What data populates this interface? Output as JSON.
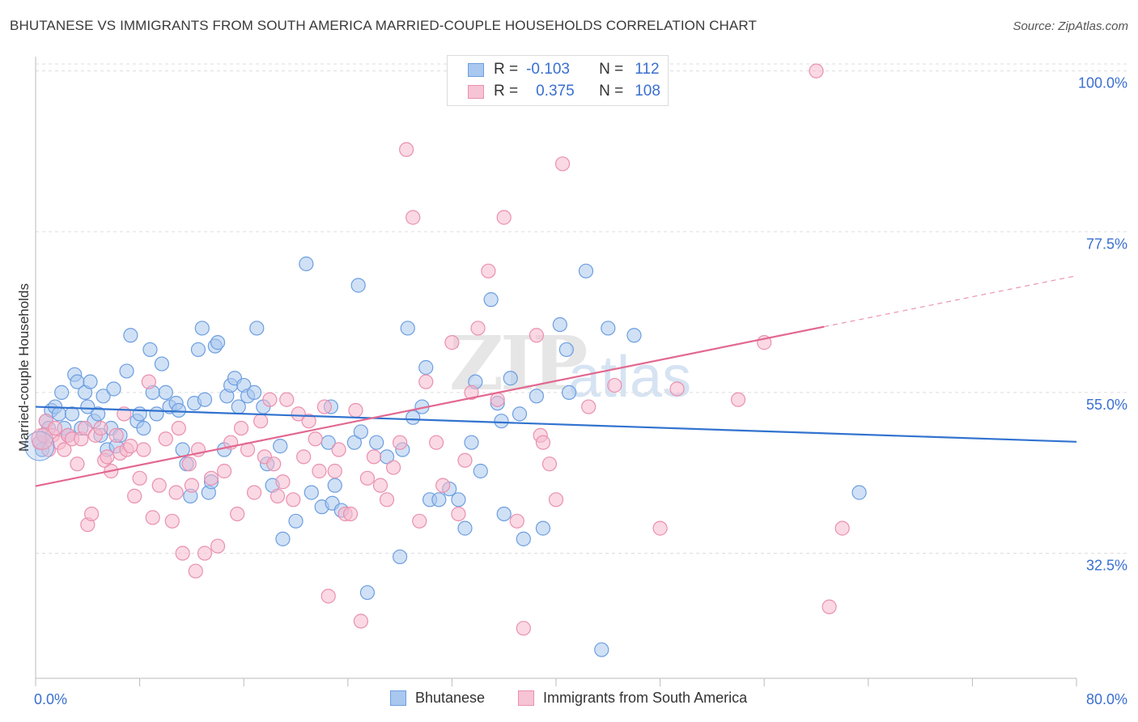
{
  "title": "BHUTANESE VS IMMIGRANTS FROM SOUTH AMERICA MARRIED-COUPLE HOUSEHOLDS CORRELATION CHART",
  "source": "Source: ZipAtlas.com",
  "watermark": {
    "zip": "ZIP",
    "atlas": "atlas"
  },
  "legend_top": {
    "rows": [
      {
        "r_label": "R =",
        "r_value": "-0.103",
        "n_label": "N =",
        "n_value": "112"
      },
      {
        "r_label": "R =",
        "r_value": "0.375",
        "n_label": "N =",
        "n_value": "108"
      }
    ]
  },
  "bottom_legend": [
    "Bhutanese",
    "Immigrants from South America"
  ],
  "colors": {
    "blue_fill": "#a9c8ef",
    "blue_stroke": "#6d9ee0",
    "blue_line": "#3173cf",
    "pink_fill": "#f6b9cd",
    "pink_stroke": "#ea90ae",
    "pink_line": "#e2688f",
    "tick_text": "#3a6fd0",
    "grid": "#dddddd"
  },
  "chart_data": {
    "type": "scatter",
    "title": "BHUTANESE VS IMMIGRANTS FROM SOUTH AMERICA MARRIED-COUPLE HOUSEHOLDS CORRELATION CHART",
    "xlabel": "",
    "ylabel": "Married-couple Households",
    "xlim": [
      0,
      80
    ],
    "ylim": [
      15,
      102
    ],
    "x_tick_labels": [
      "0.0%",
      "80.0%"
    ],
    "y_ticks": [
      32.5,
      55.0,
      77.5,
      100.0
    ],
    "y_tick_labels": [
      "32.5%",
      "55.0%",
      "77.5%",
      "100.0%"
    ],
    "grid": true,
    "legend_position": "top-center",
    "series": [
      {
        "name": "Bhutanese",
        "r": -0.103,
        "n": 112,
        "trend": {
          "x": [
            0,
            80
          ],
          "y": [
            53.0,
            48.1
          ]
        },
        "points": [
          [
            0.3,
            48
          ],
          [
            0.5,
            47
          ],
          [
            0.6,
            49
          ],
          [
            0.8,
            51
          ],
          [
            1.0,
            50
          ],
          [
            1.2,
            52.5
          ],
          [
            1.5,
            53
          ],
          [
            1.8,
            52
          ],
          [
            2.0,
            55
          ],
          [
            2.2,
            50
          ],
          [
            2.5,
            49
          ],
          [
            2.8,
            52
          ],
          [
            3.0,
            57.5
          ],
          [
            3.2,
            56.5
          ],
          [
            3.5,
            50
          ],
          [
            3.8,
            55
          ],
          [
            4.0,
            53
          ],
          [
            4.2,
            56.5
          ],
          [
            4.5,
            51
          ],
          [
            4.8,
            52
          ],
          [
            5.0,
            49
          ],
          [
            5.2,
            54.5
          ],
          [
            5.5,
            47
          ],
          [
            5.8,
            50
          ],
          [
            6.0,
            55.5
          ],
          [
            6.2,
            47.5
          ],
          [
            6.5,
            49
          ],
          [
            7.0,
            58
          ],
          [
            7.3,
            63
          ],
          [
            7.8,
            51
          ],
          [
            8.0,
            52
          ],
          [
            8.3,
            50
          ],
          [
            8.8,
            61
          ],
          [
            9.0,
            55
          ],
          [
            9.3,
            52
          ],
          [
            9.7,
            59
          ],
          [
            10.0,
            55
          ],
          [
            10.3,
            53
          ],
          [
            10.8,
            53.5
          ],
          [
            11.0,
            52.5
          ],
          [
            11.3,
            47
          ],
          [
            11.6,
            45
          ],
          [
            11.9,
            40.5
          ],
          [
            12.2,
            53.5
          ],
          [
            12.5,
            61
          ],
          [
            12.8,
            64
          ],
          [
            13.0,
            54
          ],
          [
            13.3,
            41
          ],
          [
            13.5,
            42.5
          ],
          [
            13.8,
            61.5
          ],
          [
            14.0,
            62
          ],
          [
            14.5,
            47
          ],
          [
            14.7,
            54.5
          ],
          [
            15.0,
            56
          ],
          [
            15.3,
            57
          ],
          [
            15.6,
            53
          ],
          [
            16.0,
            56
          ],
          [
            16.3,
            54.5
          ],
          [
            16.8,
            55
          ],
          [
            17.0,
            64
          ],
          [
            17.5,
            53
          ],
          [
            17.8,
            45
          ],
          [
            18.2,
            42
          ],
          [
            18.8,
            47.5
          ],
          [
            19.0,
            34.5
          ],
          [
            20.0,
            37
          ],
          [
            20.8,
            73
          ],
          [
            21.2,
            41
          ],
          [
            22.0,
            39
          ],
          [
            22.5,
            48
          ],
          [
            22.7,
            53
          ],
          [
            22.8,
            39.5
          ],
          [
            23.0,
            42
          ],
          [
            23.5,
            38.5
          ],
          [
            24.5,
            48
          ],
          [
            24.8,
            70
          ],
          [
            25.0,
            49.5
          ],
          [
            25.5,
            27
          ],
          [
            26.2,
            48
          ],
          [
            27.0,
            46
          ],
          [
            28.0,
            32
          ],
          [
            28.2,
            47
          ],
          [
            28.6,
            64
          ],
          [
            29.0,
            51.5
          ],
          [
            29.7,
            53
          ],
          [
            30.0,
            58.5
          ],
          [
            30.3,
            40
          ],
          [
            31.0,
            40
          ],
          [
            31.8,
            41.5
          ],
          [
            32.5,
            40
          ],
          [
            33.0,
            36
          ],
          [
            33.5,
            48
          ],
          [
            33.8,
            56.5
          ],
          [
            34.2,
            44
          ],
          [
            35.0,
            68
          ],
          [
            35.5,
            53.5
          ],
          [
            35.8,
            51
          ],
          [
            36.0,
            38
          ],
          [
            36.5,
            57
          ],
          [
            37.2,
            52
          ],
          [
            37.5,
            34.5
          ],
          [
            38.5,
            54.5
          ],
          [
            39.0,
            36
          ],
          [
            40.3,
            64.5
          ],
          [
            40.8,
            61
          ],
          [
            41.0,
            55
          ],
          [
            42.3,
            72
          ],
          [
            43.5,
            19
          ],
          [
            44.0,
            64
          ],
          [
            46.0,
            63
          ],
          [
            63.3,
            41
          ]
        ]
      },
      {
        "name": "Immigrants from South America",
        "r": 0.375,
        "n": 108,
        "trend": {
          "x": [
            0,
            60.6
          ],
          "y": [
            41.9,
            64.2
          ]
        },
        "points": [
          [
            0.3,
            48
          ],
          [
            0.6,
            49
          ],
          [
            0.8,
            51
          ],
          [
            1.0,
            47
          ],
          [
            1.3,
            49
          ],
          [
            1.5,
            50
          ],
          [
            1.8,
            48
          ],
          [
            2.2,
            47
          ],
          [
            2.5,
            49
          ],
          [
            2.8,
            48.5
          ],
          [
            3.2,
            45
          ],
          [
            3.5,
            48.5
          ],
          [
            3.8,
            50
          ],
          [
            4.0,
            36.5
          ],
          [
            4.3,
            38
          ],
          [
            4.6,
            49
          ],
          [
            5.0,
            50
          ],
          [
            5.3,
            45.5
          ],
          [
            5.5,
            46
          ],
          [
            5.8,
            44
          ],
          [
            6.2,
            49
          ],
          [
            6.5,
            46.5
          ],
          [
            6.8,
            52
          ],
          [
            7.0,
            47
          ],
          [
            7.3,
            47.5
          ],
          [
            7.6,
            40.5
          ],
          [
            8.0,
            43
          ],
          [
            8.3,
            47
          ],
          [
            8.7,
            56.5
          ],
          [
            9.0,
            37.5
          ],
          [
            9.5,
            42
          ],
          [
            10.0,
            48.5
          ],
          [
            10.5,
            37
          ],
          [
            10.8,
            41
          ],
          [
            11.0,
            50
          ],
          [
            11.3,
            32.5
          ],
          [
            11.8,
            45
          ],
          [
            12.0,
            42
          ],
          [
            12.3,
            30
          ],
          [
            12.5,
            47
          ],
          [
            13.0,
            32.5
          ],
          [
            13.5,
            43
          ],
          [
            14.0,
            33.5
          ],
          [
            14.5,
            44
          ],
          [
            15.0,
            48
          ],
          [
            15.5,
            38
          ],
          [
            15.8,
            50
          ],
          [
            16.3,
            47
          ],
          [
            16.8,
            41
          ],
          [
            17.3,
            51
          ],
          [
            17.6,
            46
          ],
          [
            18.0,
            54
          ],
          [
            18.3,
            45
          ],
          [
            18.6,
            40.5
          ],
          [
            19.0,
            42.5
          ],
          [
            19.3,
            54
          ],
          [
            19.8,
            40
          ],
          [
            20.2,
            52
          ],
          [
            20.6,
            46
          ],
          [
            21.0,
            51
          ],
          [
            21.5,
            48.5
          ],
          [
            21.8,
            44
          ],
          [
            22.2,
            53
          ],
          [
            22.5,
            26.5
          ],
          [
            23.0,
            44
          ],
          [
            23.3,
            47
          ],
          [
            23.8,
            38
          ],
          [
            24.2,
            38
          ],
          [
            24.6,
            52.5
          ],
          [
            25.0,
            23
          ],
          [
            25.5,
            43
          ],
          [
            26.0,
            46
          ],
          [
            26.5,
            42
          ],
          [
            27.0,
            40
          ],
          [
            27.5,
            44.5
          ],
          [
            28.0,
            48
          ],
          [
            28.5,
            89
          ],
          [
            29.0,
            79.5
          ],
          [
            29.5,
            37
          ],
          [
            30.0,
            56.5
          ],
          [
            30.8,
            48
          ],
          [
            31.3,
            42
          ],
          [
            32.0,
            62
          ],
          [
            32.5,
            38
          ],
          [
            33.0,
            45.5
          ],
          [
            33.5,
            55
          ],
          [
            34.0,
            64
          ],
          [
            34.8,
            72
          ],
          [
            35.5,
            54
          ],
          [
            36.0,
            79.5
          ],
          [
            37.0,
            37
          ],
          [
            37.5,
            22
          ],
          [
            38.5,
            63
          ],
          [
            38.8,
            49
          ],
          [
            39.0,
            48
          ],
          [
            39.5,
            45
          ],
          [
            40.0,
            40
          ],
          [
            40.5,
            87
          ],
          [
            42.5,
            53
          ],
          [
            44.5,
            56
          ],
          [
            48.0,
            36
          ],
          [
            49.3,
            55.5
          ],
          [
            54.0,
            54
          ],
          [
            56.0,
            62
          ],
          [
            60.0,
            100
          ],
          [
            61.0,
            25
          ],
          [
            62.0,
            36
          ]
        ]
      }
    ]
  }
}
